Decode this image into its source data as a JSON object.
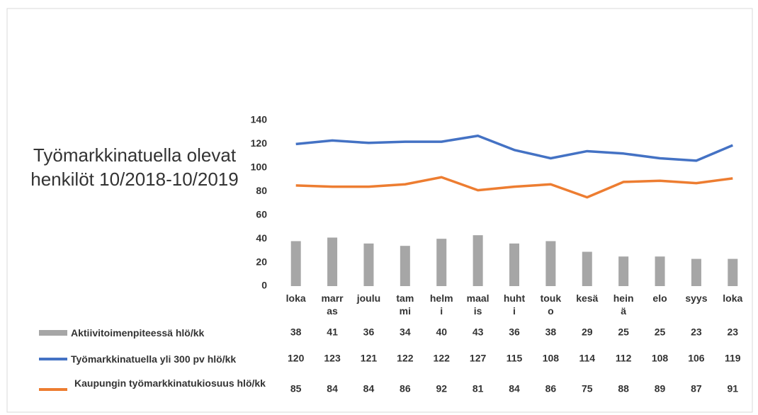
{
  "chart_data": {
    "type": "bar",
    "title": "Työmarkkinatuella olevat henkilöt 10/2018-10/2019",
    "categories": [
      "loka",
      "marras",
      "joulu",
      "tammi",
      "helmi",
      "maalis",
      "huhti",
      "touko",
      "kesä",
      "heinä",
      "elo",
      "syys",
      "loka"
    ],
    "ylim": [
      0,
      140
    ],
    "yticks": [
      0,
      20,
      40,
      60,
      80,
      100,
      120,
      140
    ],
    "series": [
      {
        "name": "Aktiivitoimenpiteessä hlö/kk",
        "type": "bar",
        "color": "#a6a6a6",
        "values": [
          38,
          41,
          36,
          34,
          40,
          43,
          36,
          38,
          29,
          25,
          25,
          23,
          23
        ]
      },
      {
        "name": "Työmarkkinatuella yli 300 pv hlö/kk",
        "type": "line",
        "color": "#4472c4",
        "values": [
          120,
          123,
          121,
          122,
          122,
          127,
          115,
          108,
          114,
          112,
          108,
          106,
          119
        ]
      },
      {
        "name": "Kaupungin työmarkkinatukiosuus hlö/kk",
        "type": "line",
        "color": "#ed7d31",
        "values": [
          85,
          84,
          84,
          86,
          92,
          81,
          84,
          86,
          75,
          88,
          89,
          87,
          91
        ]
      }
    ]
  }
}
